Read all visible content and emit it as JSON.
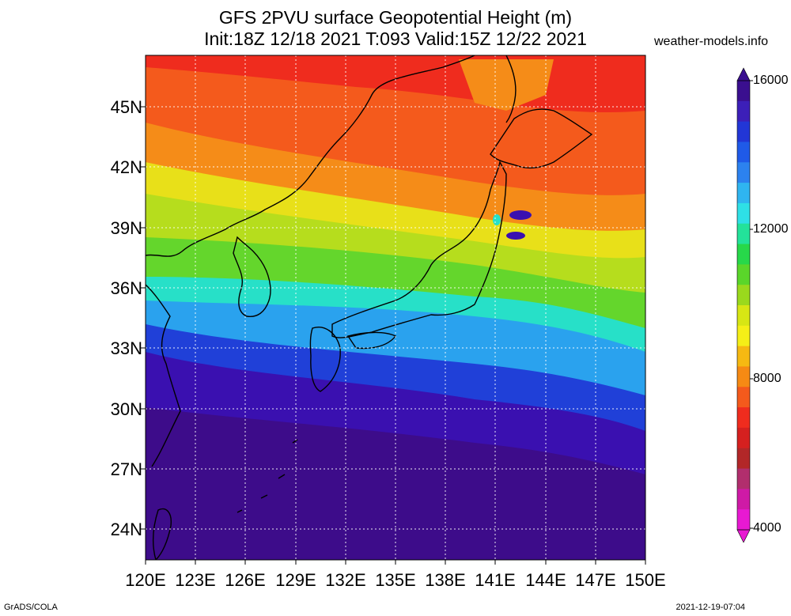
{
  "title": {
    "line1": "GFS 2PVU surface Geopotential Height (m)",
    "line2": "Init:18Z 12/18 2021 T:093 Valid:15Z 12/22 2021"
  },
  "site": "weather-models.info",
  "footer": {
    "left": "GrADS/COLA",
    "right": "2021-12-19-07:04"
  },
  "lat_ticks": [
    "45N",
    "42N",
    "39N",
    "36N",
    "33N",
    "30N",
    "27N",
    "24N"
  ],
  "lon_ticks": [
    "120E",
    "123E",
    "126E",
    "129E",
    "132E",
    "135E",
    "138E",
    "141E",
    "144E",
    "147E",
    "150E"
  ],
  "colorbar": {
    "labels": [
      "16000",
      "12000",
      "8000",
      "4000"
    ],
    "colors": [
      "#3a0f8f",
      "#3c1fb8",
      "#2236d6",
      "#1f5ae8",
      "#2c82ef",
      "#2fb5f0",
      "#2ee0e6",
      "#23e29a",
      "#27d84a",
      "#5ad62a",
      "#9ad91d",
      "#d7e614",
      "#f5ef17",
      "#f6b912",
      "#f68a14",
      "#f45a1c",
      "#ef2c1e",
      "#d5201f",
      "#b22728",
      "#b12e6d",
      "#cf1aa6",
      "#e819d2"
    ]
  },
  "map": {
    "bands": [
      "#f2761a",
      "#f45a1c",
      "#f58c18",
      "#e8e019",
      "#b6dd1d",
      "#64d62c",
      "#27e0c8",
      "#2aa2ee",
      "#2040d8",
      "#3a10b0",
      "#3d0c8a"
    ]
  }
}
